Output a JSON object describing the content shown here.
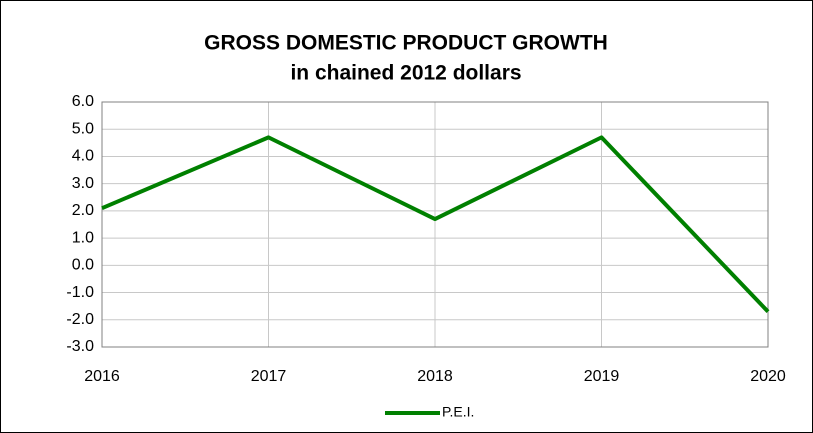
{
  "chart_data": {
    "type": "line",
    "title": "GROSS DOMESTIC PRODUCT GROWTH",
    "subtitle": "in chained 2012 dollars",
    "categories": [
      "2016",
      "2017",
      "2018",
      "2019",
      "2020"
    ],
    "series": [
      {
        "name": "P.E.I.",
        "color": "#008000",
        "values": [
          2.1,
          4.7,
          1.7,
          4.7,
          -1.7
        ]
      }
    ],
    "ylim": [
      -3,
      6
    ],
    "yticks": [
      {
        "value": -3,
        "label": "-3.0"
      },
      {
        "value": -2,
        "label": "-2.0"
      },
      {
        "value": -1,
        "label": "-1.0"
      },
      {
        "value": 0,
        "label": "0.0"
      },
      {
        "value": 1,
        "label": "1.0"
      },
      {
        "value": 2,
        "label": "2.0"
      },
      {
        "value": 3,
        "label": "3.0"
      },
      {
        "value": 4,
        "label": "4.0"
      },
      {
        "value": 5,
        "label": "5.0"
      },
      {
        "value": 6,
        "label": "6.0"
      }
    ],
    "grid": true,
    "legend": "bottom"
  }
}
